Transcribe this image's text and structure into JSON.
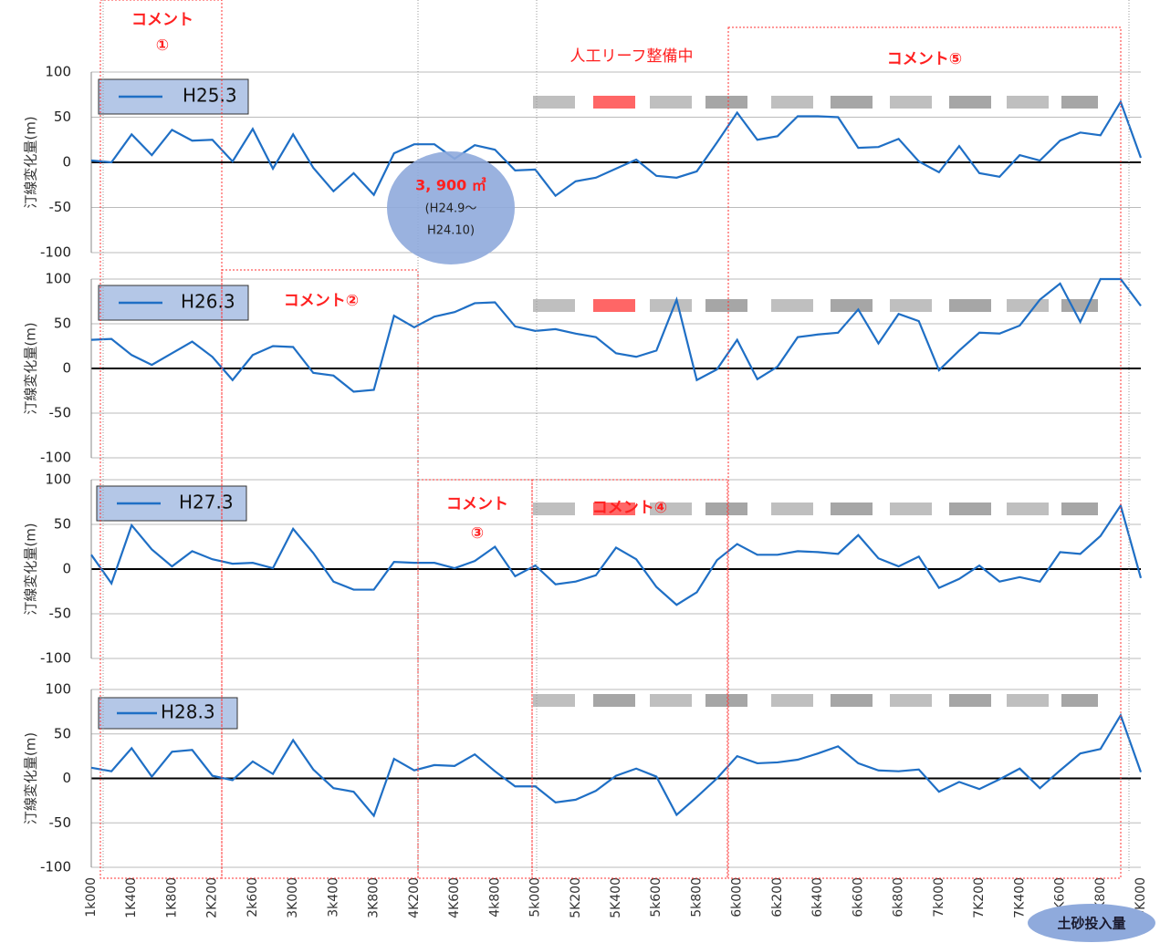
{
  "chart_data": [
    {
      "type": "line",
      "y_label": "汀線変化量(m)",
      "ylim": [
        -100,
        100
      ],
      "yticks": [
        -100,
        -50,
        0,
        50,
        100
      ],
      "grid": true,
      "series": [
        {
          "name": "H25.3",
          "color": "#1f6fc5",
          "values": [
            2,
            0,
            31,
            8,
            36,
            24,
            25,
            1,
            37,
            -7,
            31,
            -6,
            -32,
            -12,
            -36,
            10,
            20,
            20,
            4,
            19,
            14,
            -9,
            -8,
            -37,
            -21,
            -17,
            -7,
            3,
            -15,
            -17,
            -10,
            22,
            55,
            25,
            29,
            51,
            51,
            50,
            16,
            17,
            26,
            1,
            -11,
            18,
            -12,
            -16,
            8,
            2,
            24,
            33,
            30,
            67,
            5
          ]
        }
      ]
    },
    {
      "type": "line",
      "y_label": "汀線変化量(m)",
      "ylim": [
        -100,
        100
      ],
      "yticks": [
        -100,
        -50,
        0,
        50,
        100
      ],
      "grid": true,
      "series": [
        {
          "name": "H26.3",
          "color": "#1f6fc5",
          "values": [
            32,
            33,
            15,
            4,
            17,
            30,
            13,
            -13,
            15,
            25,
            24,
            -5,
            -8,
            -26,
            -24,
            59,
            46,
            58,
            63,
            73,
            74,
            47,
            42,
            44,
            39,
            35,
            17,
            13,
            20,
            77,
            -13,
            -1,
            32,
            -12,
            2,
            35,
            38,
            40,
            66,
            28,
            61,
            53,
            -2,
            20,
            40,
            39,
            48,
            77,
            95,
            52,
            100,
            100,
            70
          ]
        }
      ]
    },
    {
      "type": "line",
      "y_label": "汀線変化量(m)",
      "ylim": [
        -100,
        100
      ],
      "yticks": [
        -100,
        -50,
        0,
        50,
        100
      ],
      "grid": true,
      "series": [
        {
          "name": "H27.3",
          "color": "#1f6fc5",
          "values": [
            16,
            -16,
            49,
            22,
            3,
            20,
            11,
            6,
            7,
            1,
            45,
            18,
            -14,
            -23,
            -23,
            8,
            7,
            7,
            1,
            9,
            25,
            -8,
            4,
            -17,
            -14,
            -7,
            24,
            11,
            -20,
            -40,
            -26,
            10,
            28,
            16,
            16,
            20,
            19,
            17,
            38,
            12,
            3,
            14,
            -21,
            -11,
            4,
            -14,
            -9,
            -14,
            19,
            17,
            37,
            71,
            -10
          ]
        }
      ]
    },
    {
      "type": "line",
      "y_label": "汀線変化量(m)",
      "ylim": [
        -100,
        100
      ],
      "yticks": [
        -100,
        -50,
        0,
        50,
        100
      ],
      "grid": true,
      "categories": [
        "1k000",
        null,
        "1K400",
        null,
        "1K800",
        null,
        "2K200",
        null,
        "2k600",
        null,
        "3K000",
        null,
        "3k400",
        null,
        "3K800",
        null,
        "4K200",
        null,
        "4K600",
        null,
        "4k800",
        null,
        "5k000",
        null,
        "5K200",
        null,
        "5K400",
        null,
        "5k600",
        null,
        "5k800",
        null,
        "6k000",
        null,
        "6k200",
        null,
        "6k400",
        null,
        "6k600",
        null,
        "6k800",
        null,
        "7k000",
        null,
        "7K200",
        null,
        "7K400",
        null,
        "7K600",
        null,
        "7K800",
        null,
        "8K000"
      ],
      "series": [
        {
          "name": "H28.3",
          "color": "#1f6fc5",
          "values": [
            12,
            8,
            34,
            2,
            30,
            32,
            3,
            -2,
            19,
            5,
            43,
            10,
            -11,
            -15,
            -42,
            22,
            9,
            15,
            14,
            27,
            8,
            -9,
            -9,
            -27,
            -24,
            -14,
            3,
            11,
            2,
            -41,
            -21,
            0,
            25,
            17,
            18,
            21,
            28,
            36,
            17,
            9,
            8,
            10,
            -15,
            -4,
            -12,
            -1,
            11,
            -11,
            9,
            28,
            33,
            71,
            7
          ]
        }
      ]
    }
  ],
  "annotations": [
    "コメント",
    "①",
    "コメント②",
    "コメント",
    "③",
    "コメント④",
    "コメント⑤",
    "人工リーフ整備中"
  ],
  "bubble": {
    "amount": "3, 900 ㎥",
    "period_start": "(H24.9〜",
    "period_end": "H24.10)"
  },
  "button": "土砂投入量"
}
